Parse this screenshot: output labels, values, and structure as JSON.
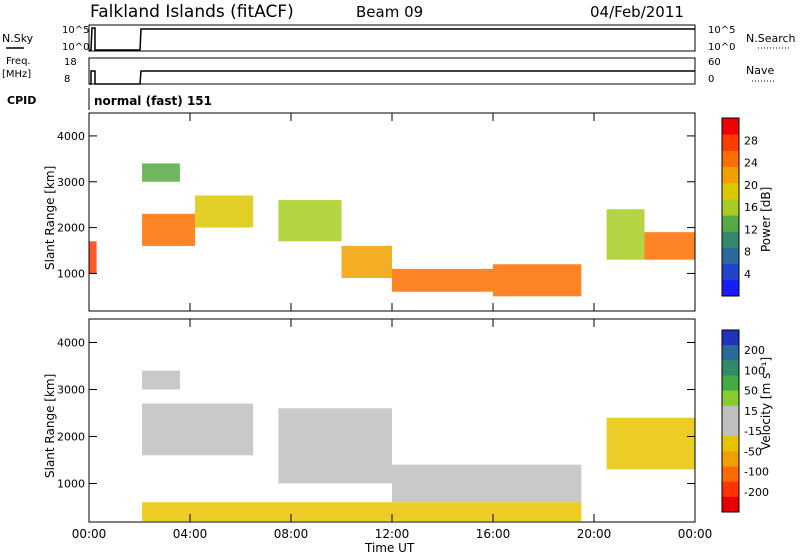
{
  "header": {
    "station": "Falkland Islands (fitACF)",
    "beam": "Beam 09",
    "date": "04/Feb/2011"
  },
  "panels": {
    "nsky": {
      "label": "N.Sky",
      "top_tick": "10^5",
      "bottom_tick": "10^0"
    },
    "nsearch": {
      "label": "N.Search",
      "top_tick": "10^5",
      "bottom_tick": "10^0"
    },
    "freq": {
      "label_1": "Freq.",
      "label_2": "[MHz]",
      "top_tick": "18",
      "bottom_tick": "8"
    },
    "nave": {
      "label": "Nave",
      "top_tick": "60",
      "bottom_tick": "0"
    },
    "cpid": {
      "label": "CPID",
      "value": "normal (fast) 151"
    }
  },
  "colorbars": {
    "power": {
      "title": "Power [dB]",
      "ticks": [
        "4",
        "8",
        "12",
        "16",
        "20",
        "24",
        "28"
      ],
      "colors": [
        "#1a1aff",
        "#2244cc",
        "#2a6a9a",
        "#338a6a",
        "#55aa44",
        "#a8cc22",
        "#ddc800",
        "#f2a000",
        "#ff6e00",
        "#ff3c00",
        "#f00000"
      ]
    },
    "velocity": {
      "title": "Velocity [m s⁻¹]",
      "ticks": [
        "200",
        "100",
        "50",
        "15",
        "-15",
        "-50",
        "-100",
        "-200"
      ],
      "colors": [
        "#2233bb",
        "#2a6a9a",
        "#338a6a",
        "#44aa44",
        "#88cc33",
        "#bfbfbf",
        "#bfbfbf",
        "#e8c400",
        "#f29d00",
        "#ff6a00",
        "#ff3300",
        "#e80000"
      ]
    }
  },
  "chart_data": [
    {
      "type": "heatmap",
      "title": "Power",
      "ylabel": "Slant Range [km]",
      "xlabel": "Time UT",
      "x_ticks": [
        "00:00",
        "04:00",
        "08:00",
        "12:00",
        "16:00",
        "20:00",
        "00:00"
      ],
      "y_ticks": [
        "1000",
        "2000",
        "3000",
        "4000"
      ],
      "ylim": [
        180,
        4500
      ],
      "xlim_hours": [
        0,
        24
      ],
      "colorbar": "Power [dB]",
      "echo_bands": [
        {
          "t_start": 0.0,
          "t_end": 0.3,
          "range_low": 1000,
          "range_high": 1700,
          "power_db": 26
        },
        {
          "t_start": 2.1,
          "t_end": 4.2,
          "range_low": 1600,
          "range_high": 2300,
          "power_db": 24
        },
        {
          "t_start": 4.2,
          "t_end": 6.5,
          "range_low": 2000,
          "range_high": 2700,
          "power_db": 18
        },
        {
          "t_start": 2.1,
          "t_end": 3.6,
          "range_low": 3000,
          "range_high": 3400,
          "power_db": 12
        },
        {
          "t_start": 7.5,
          "t_end": 10.0,
          "range_low": 1700,
          "range_high": 2600,
          "power_db": 16
        },
        {
          "t_start": 10.0,
          "t_end": 12.0,
          "range_low": 900,
          "range_high": 1600,
          "power_db": 20
        },
        {
          "t_start": 12.0,
          "t_end": 16.0,
          "range_low": 600,
          "range_high": 1100,
          "power_db": 24
        },
        {
          "t_start": 16.0,
          "t_end": 19.5,
          "range_low": 500,
          "range_high": 1200,
          "power_db": 24
        },
        {
          "t_start": 20.5,
          "t_end": 22.0,
          "range_low": 1300,
          "range_high": 2400,
          "power_db": 14
        },
        {
          "t_start": 22.0,
          "t_end": 24.0,
          "range_low": 1300,
          "range_high": 1900,
          "power_db": 22
        }
      ]
    },
    {
      "type": "heatmap",
      "title": "Velocity",
      "ylabel": "Slant Range [km]",
      "xlabel": "Time UT",
      "x_ticks": [
        "00:00",
        "04:00",
        "08:00",
        "12:00",
        "16:00",
        "20:00",
        "00:00"
      ],
      "y_ticks": [
        "1000",
        "2000",
        "3000",
        "4000"
      ],
      "ylim": [
        180,
        4500
      ],
      "xlim_hours": [
        0,
        24
      ],
      "colorbar": "Velocity [m s⁻¹]",
      "echo_bands": [
        {
          "t_start": 2.1,
          "t_end": 6.5,
          "range_low": 1600,
          "range_high": 2700,
          "velocity": 0
        },
        {
          "t_start": 2.1,
          "t_end": 3.6,
          "range_low": 3000,
          "range_high": 3400,
          "velocity": 0
        },
        {
          "t_start": 7.5,
          "t_end": 12.0,
          "range_low": 1000,
          "range_high": 2600,
          "velocity": 0
        },
        {
          "t_start": 12.0,
          "t_end": 19.5,
          "range_low": 600,
          "range_high": 1400,
          "velocity": 0
        },
        {
          "t_start": 20.5,
          "t_end": 24.0,
          "range_low": 1300,
          "range_high": 2400,
          "velocity": -60
        },
        {
          "t_start": 2.1,
          "t_end": 19.5,
          "range_low": 200,
          "range_high": 600,
          "velocity": -80
        }
      ]
    }
  ]
}
